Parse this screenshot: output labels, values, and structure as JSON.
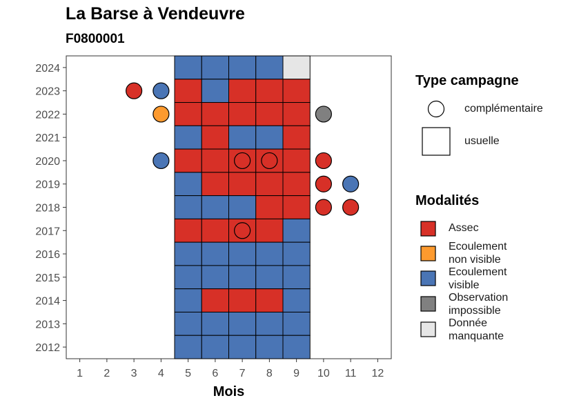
{
  "chart_data": {
    "type": "heatmap",
    "title": "La Barse à Vendeuvre",
    "subtitle": "F0800001",
    "xlabel": "Mois",
    "ylabel": "",
    "x_ticks": [
      "1",
      "2",
      "3",
      "4",
      "5",
      "6",
      "7",
      "8",
      "9",
      "10",
      "11",
      "12"
    ],
    "y_ticks": [
      "2012",
      "2013",
      "2014",
      "2015",
      "2016",
      "2017",
      "2018",
      "2019",
      "2020",
      "2021",
      "2022",
      "2023",
      "2024"
    ],
    "xlim": [
      0.5,
      12.5
    ],
    "ylim": [
      2011.5,
      2024.5
    ],
    "grid": false,
    "legend_position": "right",
    "colors": {
      "Assec": "#d73027",
      "Ecoulement non visible": "#fd9a2e",
      "Ecoulement visible": "#4a75b5",
      "Observation impossible": "#808080",
      "Donnée manquante": "#e6e6e6"
    },
    "usuelle": [
      {
        "year": 2024,
        "month": 5,
        "modalite": "Ecoulement visible"
      },
      {
        "year": 2024,
        "month": 6,
        "modalite": "Ecoulement visible"
      },
      {
        "year": 2024,
        "month": 7,
        "modalite": "Ecoulement visible"
      },
      {
        "year": 2024,
        "month": 8,
        "modalite": "Ecoulement visible"
      },
      {
        "year": 2024,
        "month": 9,
        "modalite": "Donnée manquante"
      },
      {
        "year": 2023,
        "month": 5,
        "modalite": "Assec"
      },
      {
        "year": 2023,
        "month": 6,
        "modalite": "Ecoulement visible"
      },
      {
        "year": 2023,
        "month": 7,
        "modalite": "Assec"
      },
      {
        "year": 2023,
        "month": 8,
        "modalite": "Assec"
      },
      {
        "year": 2023,
        "month": 9,
        "modalite": "Assec"
      },
      {
        "year": 2022,
        "month": 5,
        "modalite": "Assec"
      },
      {
        "year": 2022,
        "month": 6,
        "modalite": "Assec"
      },
      {
        "year": 2022,
        "month": 7,
        "modalite": "Assec"
      },
      {
        "year": 2022,
        "month": 8,
        "modalite": "Assec"
      },
      {
        "year": 2022,
        "month": 9,
        "modalite": "Assec"
      },
      {
        "year": 2021,
        "month": 5,
        "modalite": "Ecoulement visible"
      },
      {
        "year": 2021,
        "month": 6,
        "modalite": "Assec"
      },
      {
        "year": 2021,
        "month": 7,
        "modalite": "Ecoulement visible"
      },
      {
        "year": 2021,
        "month": 8,
        "modalite": "Ecoulement visible"
      },
      {
        "year": 2021,
        "month": 9,
        "modalite": "Assec"
      },
      {
        "year": 2020,
        "month": 5,
        "modalite": "Assec"
      },
      {
        "year": 2020,
        "month": 6,
        "modalite": "Assec"
      },
      {
        "year": 2020,
        "month": 7,
        "modalite": "Assec"
      },
      {
        "year": 2020,
        "month": 8,
        "modalite": "Assec"
      },
      {
        "year": 2020,
        "month": 9,
        "modalite": "Assec"
      },
      {
        "year": 2019,
        "month": 5,
        "modalite": "Ecoulement visible"
      },
      {
        "year": 2019,
        "month": 6,
        "modalite": "Assec"
      },
      {
        "year": 2019,
        "month": 7,
        "modalite": "Assec"
      },
      {
        "year": 2019,
        "month": 8,
        "modalite": "Assec"
      },
      {
        "year": 2019,
        "month": 9,
        "modalite": "Assec"
      },
      {
        "year": 2018,
        "month": 5,
        "modalite": "Ecoulement visible"
      },
      {
        "year": 2018,
        "month": 6,
        "modalite": "Ecoulement visible"
      },
      {
        "year": 2018,
        "month": 7,
        "modalite": "Ecoulement visible"
      },
      {
        "year": 2018,
        "month": 8,
        "modalite": "Assec"
      },
      {
        "year": 2018,
        "month": 9,
        "modalite": "Assec"
      },
      {
        "year": 2017,
        "month": 5,
        "modalite": "Assec"
      },
      {
        "year": 2017,
        "month": 6,
        "modalite": "Assec"
      },
      {
        "year": 2017,
        "month": 7,
        "modalite": "Assec"
      },
      {
        "year": 2017,
        "month": 8,
        "modalite": "Assec"
      },
      {
        "year": 2017,
        "month": 9,
        "modalite": "Ecoulement visible"
      },
      {
        "year": 2016,
        "month": 5,
        "modalite": "Ecoulement visible"
      },
      {
        "year": 2016,
        "month": 6,
        "modalite": "Ecoulement visible"
      },
      {
        "year": 2016,
        "month": 7,
        "modalite": "Ecoulement visible"
      },
      {
        "year": 2016,
        "month": 8,
        "modalite": "Ecoulement visible"
      },
      {
        "year": 2016,
        "month": 9,
        "modalite": "Ecoulement visible"
      },
      {
        "year": 2015,
        "month": 5,
        "modalite": "Ecoulement visible"
      },
      {
        "year": 2015,
        "month": 6,
        "modalite": "Ecoulement visible"
      },
      {
        "year": 2015,
        "month": 7,
        "modalite": "Ecoulement visible"
      },
      {
        "year": 2015,
        "month": 8,
        "modalite": "Ecoulement visible"
      },
      {
        "year": 2015,
        "month": 9,
        "modalite": "Ecoulement visible"
      },
      {
        "year": 2014,
        "month": 5,
        "modalite": "Ecoulement visible"
      },
      {
        "year": 2014,
        "month": 6,
        "modalite": "Assec"
      },
      {
        "year": 2014,
        "month": 7,
        "modalite": "Assec"
      },
      {
        "year": 2014,
        "month": 8,
        "modalite": "Assec"
      },
      {
        "year": 2014,
        "month": 9,
        "modalite": "Ecoulement visible"
      },
      {
        "year": 2013,
        "month": 5,
        "modalite": "Ecoulement visible"
      },
      {
        "year": 2013,
        "month": 6,
        "modalite": "Ecoulement visible"
      },
      {
        "year": 2013,
        "month": 7,
        "modalite": "Ecoulement visible"
      },
      {
        "year": 2013,
        "month": 8,
        "modalite": "Ecoulement visible"
      },
      {
        "year": 2013,
        "month": 9,
        "modalite": "Ecoulement visible"
      },
      {
        "year": 2012,
        "month": 5,
        "modalite": "Ecoulement visible"
      },
      {
        "year": 2012,
        "month": 6,
        "modalite": "Ecoulement visible"
      },
      {
        "year": 2012,
        "month": 7,
        "modalite": "Ecoulement visible"
      },
      {
        "year": 2012,
        "month": 8,
        "modalite": "Ecoulement visible"
      },
      {
        "year": 2012,
        "month": 9,
        "modalite": "Ecoulement visible"
      }
    ],
    "complementaire": [
      {
        "year": 2023,
        "month": 3,
        "modalite": "Assec"
      },
      {
        "year": 2023,
        "month": 4,
        "modalite": "Ecoulement visible"
      },
      {
        "year": 2022,
        "month": 4,
        "modalite": "Ecoulement non visible"
      },
      {
        "year": 2022,
        "month": 10,
        "modalite": "Observation impossible"
      },
      {
        "year": 2020,
        "month": 4,
        "modalite": "Ecoulement visible"
      },
      {
        "year": 2020,
        "month": 7,
        "modalite": "Assec"
      },
      {
        "year": 2020,
        "month": 8,
        "modalite": "Assec"
      },
      {
        "year": 2020,
        "month": 10,
        "modalite": "Assec"
      },
      {
        "year": 2019,
        "month": 10,
        "modalite": "Assec"
      },
      {
        "year": 2019,
        "month": 11,
        "modalite": "Ecoulement visible"
      },
      {
        "year": 2018,
        "month": 10,
        "modalite": "Assec"
      },
      {
        "year": 2018,
        "month": 11,
        "modalite": "Assec"
      },
      {
        "year": 2017,
        "month": 7,
        "modalite": "Assec"
      }
    ]
  },
  "legend": {
    "type_title": "Type campagne",
    "type_items": [
      {
        "label": "complémentaire"
      },
      {
        "label": "usuelle"
      }
    ],
    "modalites_title": "Modalités",
    "modalites_items": [
      {
        "label": "Assec"
      },
      {
        "label": "Ecoulement non visible"
      },
      {
        "label": "Ecoulement visible"
      },
      {
        "label": "Observation impossible"
      },
      {
        "label": "Donnée manquante"
      }
    ]
  }
}
